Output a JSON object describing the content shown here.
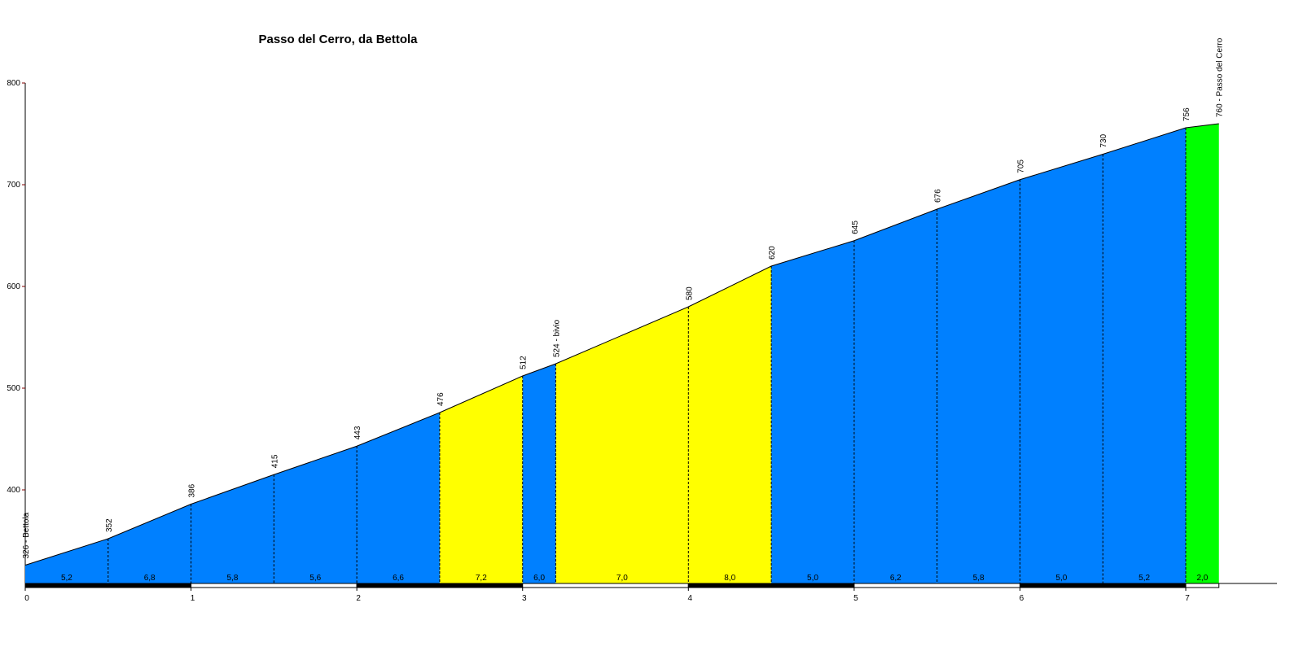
{
  "chart_data": {
    "type": "area",
    "title": "Passo del Cerro, da Bettola",
    "x": [
      0,
      0.5,
      1,
      1.5,
      2,
      2.5,
      3,
      3.2,
      4,
      4.5,
      5,
      5.5,
      6,
      6.5,
      7,
      7.2
    ],
    "values": [
      326,
      352,
      386,
      415,
      443,
      476,
      512,
      524,
      580,
      620,
      645,
      676,
      705,
      730,
      756,
      760
    ],
    "value_labels": [
      "326 - Bettola",
      "352",
      "386",
      "415",
      "443",
      "476",
      "512",
      "524 - bivio",
      "580",
      "620",
      "645",
      "676",
      "705",
      "730",
      "756",
      "760 - Passo del Cerro"
    ],
    "segments": {
      "values": [
        5.2,
        6.8,
        5.8,
        5.6,
        6.6,
        7.2,
        6.0,
        7.0,
        8.0,
        5.0,
        6.2,
        5.8,
        5.0,
        5.2,
        2.0
      ],
      "value_labels": [
        "5,2",
        "6,8",
        "5,8",
        "5,6",
        "6,6",
        "7,2",
        "6,0",
        "7,0",
        "8,0",
        "5,0",
        "6,2",
        "5,8",
        "5,0",
        "5,2",
        "2,0"
      ],
      "colors": [
        "#0080ff",
        "#0080ff",
        "#0080ff",
        "#0080ff",
        "#0080ff",
        "#ffff00",
        "#0080ff",
        "#ffff00",
        "#ffff00",
        "#0080ff",
        "#0080ff",
        "#0080ff",
        "#0080ff",
        "#0080ff",
        "#00ff00"
      ]
    },
    "xlim": [
      0,
      7.55
    ],
    "xticks": [
      0,
      1,
      2,
      3,
      4,
      5,
      6,
      7
    ],
    "ylim": [
      308,
      800
    ],
    "yticks": [
      400,
      500,
      600,
      700,
      800
    ]
  }
}
